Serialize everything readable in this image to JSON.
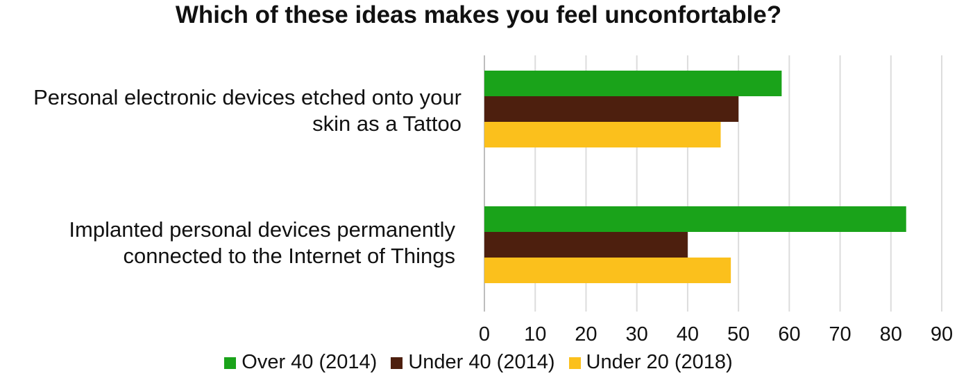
{
  "chart_data": {
    "type": "bar",
    "orientation": "horizontal",
    "title": "Which of these ideas makes you feel unconfortable?",
    "categories": [
      [
        "Personal electronic devices etched onto your",
        "skin as a Tattoo"
      ],
      [
        "Implanted personal devices permanently",
        "connected to the Internet of Things"
      ]
    ],
    "series": [
      {
        "name": "Over 40 (2014)",
        "color": "#1aa31a",
        "values": [
          58.5,
          83
        ]
      },
      {
        "name": "Under 40 (2014)",
        "color": "#4d1f0e",
        "values": [
          50,
          40
        ]
      },
      {
        "name": "Under 20 (2018)",
        "color": "#fbc01c",
        "values": [
          46.5,
          48.5
        ]
      }
    ],
    "xlim": [
      0,
      90
    ],
    "xticks": [
      "0",
      "10",
      "20",
      "30",
      "40",
      "50",
      "60",
      "70",
      "80",
      "90"
    ],
    "grid": true,
    "legend_position": "bottom"
  }
}
